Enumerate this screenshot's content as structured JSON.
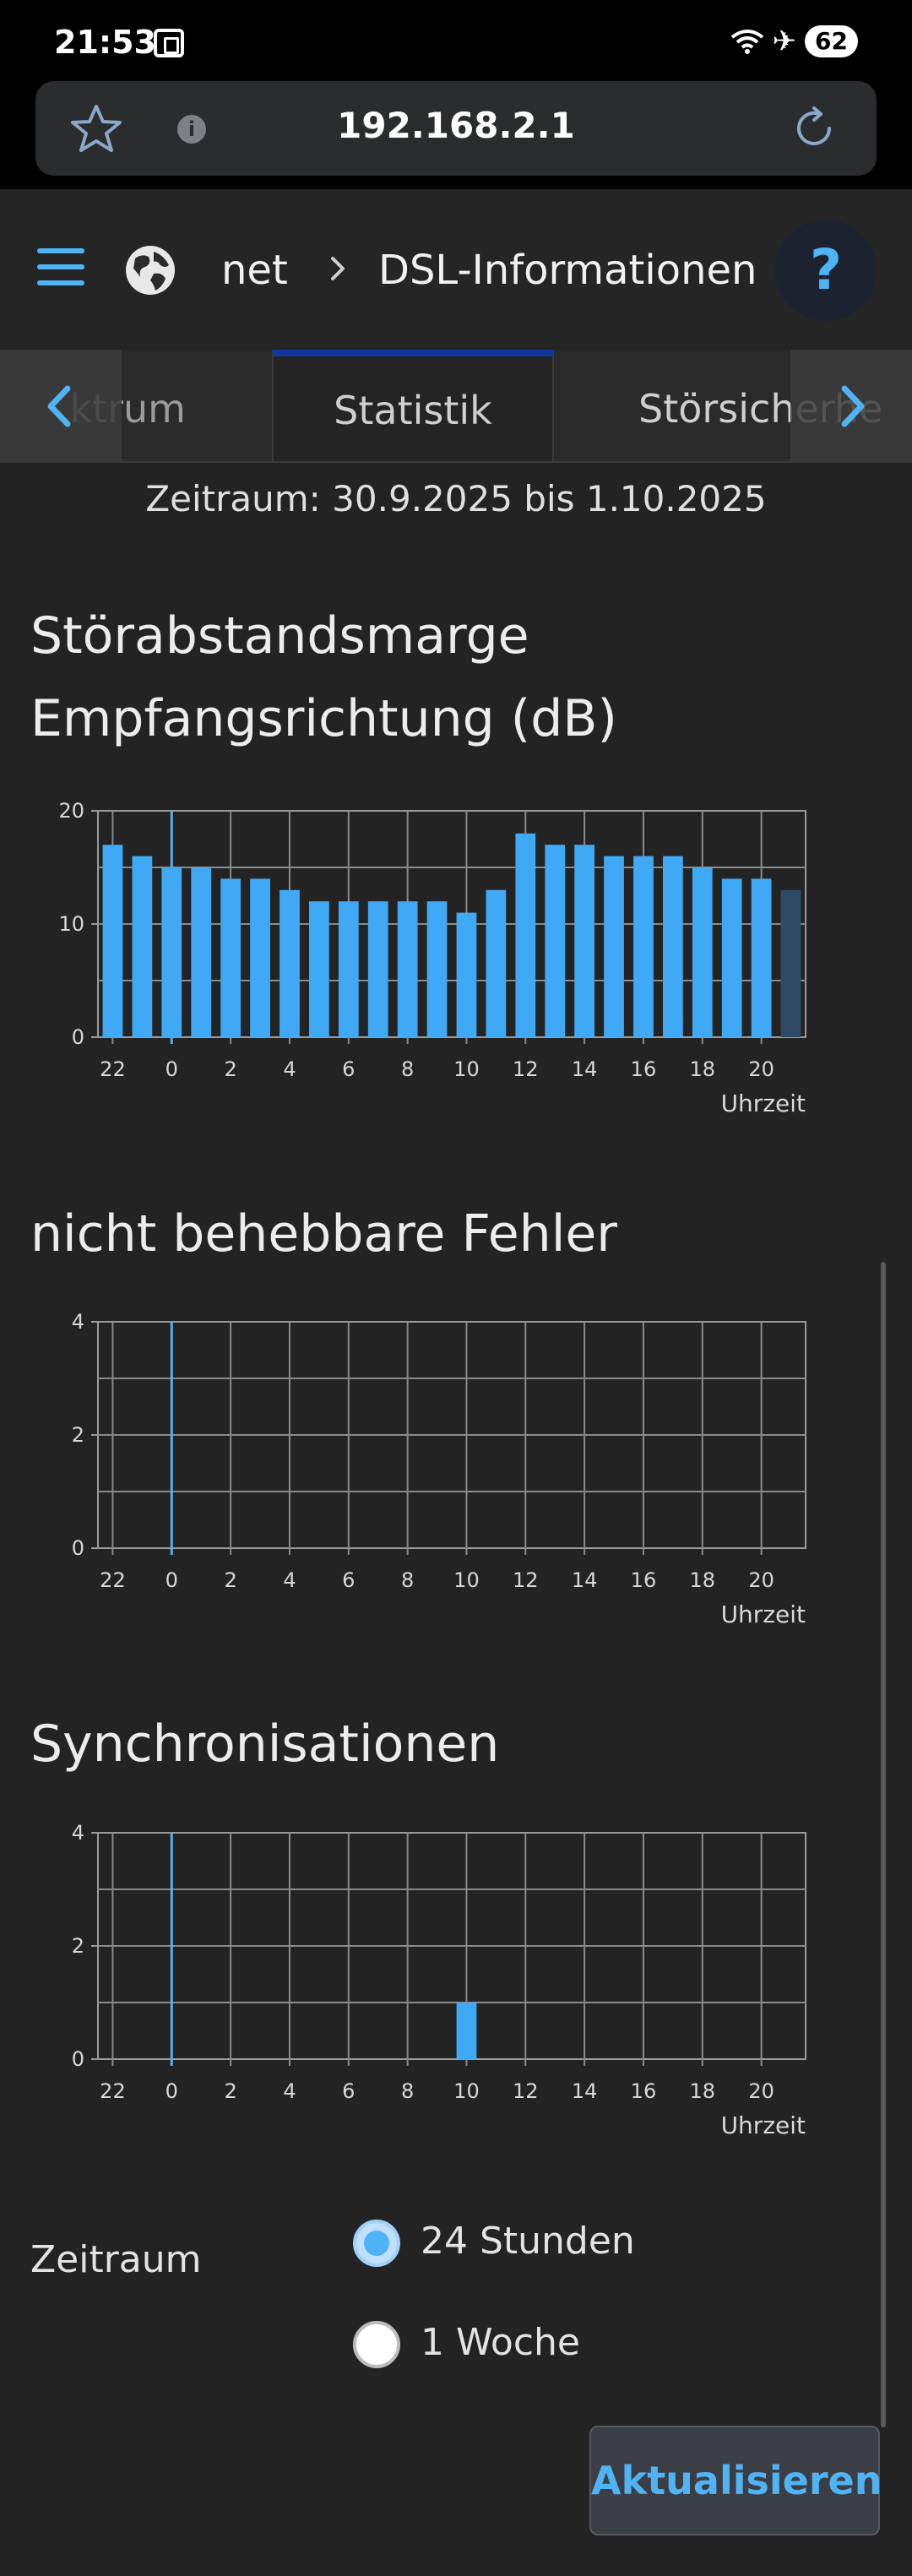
{
  "status_bar": {
    "time": "21:53",
    "battery": "62",
    "icons": [
      "screen-record-icon",
      "wifi-icon",
      "airplane-icon",
      "battery-icon"
    ]
  },
  "browser": {
    "url": "192.168.2.1",
    "icons": [
      "star-icon",
      "info-icon",
      "reload-icon"
    ]
  },
  "header": {
    "breadcrumb_prev": "net",
    "breadcrumb_current": "DSL-Informationen",
    "help_label": "?"
  },
  "tabs": [
    {
      "label": "ktrum"
    },
    {
      "label": "Statistik",
      "active": true
    },
    {
      "label": "Störsicherhe"
    }
  ],
  "period_text": "Zeitraum: 30.9.2025 bis 1.10.2025",
  "colors": {
    "accent": "#4fb3f5",
    "bar": "#3fa9f5",
    "bar_current": "#2e4a66",
    "background": "#232323",
    "grid": "#8a8a8a"
  },
  "chart_data": [
    {
      "type": "bar",
      "title": "Störabstandsmarge Empfangsrichtung (dB)",
      "title_line1": "Störabstandsmarge",
      "title_line2": "Empfangsrichtung (dB)",
      "xlabel": "Uhrzeit",
      "ylabel": "",
      "x_start_hour": 22,
      "x_tick_labels": [
        "22",
        "0",
        "2",
        "4",
        "6",
        "8",
        "10",
        "12",
        "14",
        "16",
        "18",
        "20"
      ],
      "ylim": [
        0,
        20
      ],
      "y_ticks": [
        0,
        10,
        20
      ],
      "values": [
        17,
        16,
        15,
        15,
        14,
        14,
        13,
        12,
        12,
        12,
        12,
        12,
        11,
        13,
        18,
        17,
        17,
        16,
        16,
        16,
        15,
        14,
        14,
        13
      ],
      "last_bar_current": true,
      "grid": true
    },
    {
      "type": "bar",
      "title": "nicht behebbare Fehler",
      "xlabel": "Uhrzeit",
      "ylabel": "",
      "x_start_hour": 22,
      "x_tick_labels": [
        "22",
        "0",
        "2",
        "4",
        "6",
        "8",
        "10",
        "12",
        "14",
        "16",
        "18",
        "20"
      ],
      "ylim": [
        0,
        4
      ],
      "y_ticks": [
        0,
        2,
        4
      ],
      "values": [
        0,
        0,
        0,
        0,
        0,
        0,
        0,
        0,
        0,
        0,
        0,
        0,
        0,
        0,
        0,
        0,
        0,
        0,
        0,
        0,
        0,
        0,
        0,
        0
      ],
      "last_bar_current": false,
      "grid": true
    },
    {
      "type": "bar",
      "title": "Synchronisationen",
      "xlabel": "Uhrzeit",
      "ylabel": "",
      "x_start_hour": 22,
      "x_tick_labels": [
        "22",
        "0",
        "2",
        "4",
        "6",
        "8",
        "10",
        "12",
        "14",
        "16",
        "18",
        "20"
      ],
      "ylim": [
        0,
        4
      ],
      "y_ticks": [
        0,
        2,
        4
      ],
      "values": [
        0,
        0,
        0,
        0,
        0,
        0,
        0,
        0,
        0,
        0,
        0,
        0,
        1,
        0,
        0,
        0,
        0,
        0,
        0,
        0,
        0,
        0,
        0,
        0
      ],
      "last_bar_current": false,
      "grid": true
    }
  ],
  "period_selector": {
    "label": "Zeitraum",
    "options": [
      {
        "label": "24 Stunden",
        "checked": true
      },
      {
        "label": "1 Woche",
        "checked": false
      }
    ]
  },
  "refresh_button": "Aktualisieren"
}
